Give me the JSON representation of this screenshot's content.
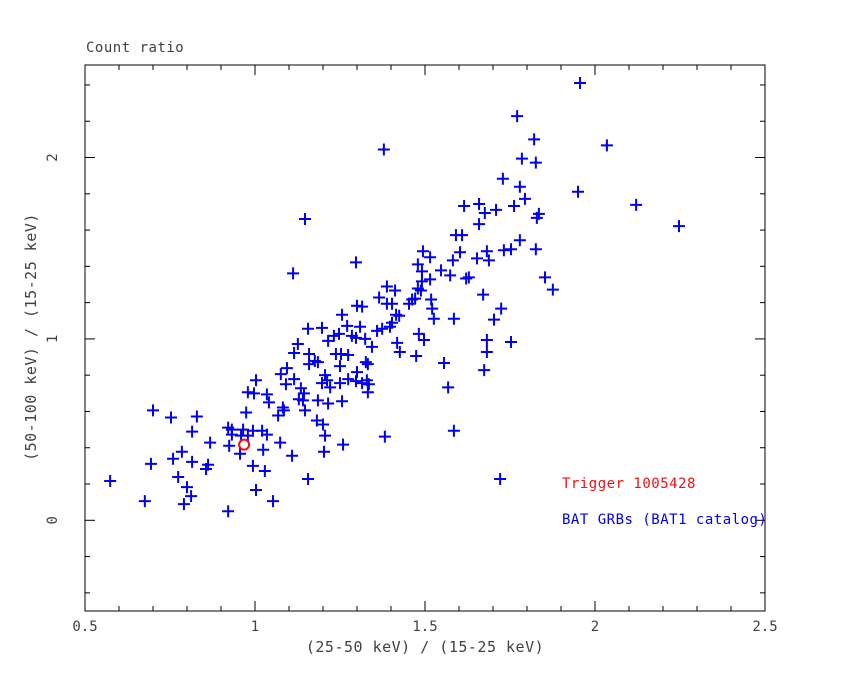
{
  "title": "Count ratio",
  "legend": {
    "trigger_label": "Trigger 1005428",
    "catalog_label": "BAT GRBs (BAT1 catalog)"
  },
  "colors": {
    "marker_blue": "#0000ee",
    "trigger_red": "#ee1111",
    "axis": "#000000",
    "text": "#404040",
    "background": "#ffffff"
  },
  "chart_data": {
    "type": "scatter",
    "title": "Count ratio",
    "xlabel": "(25-50 keV) / (15-25 keV)",
    "ylabel": "(50-100 keV) / (15-25 keV)",
    "xlim": [
      0.5,
      2.5
    ],
    "ylim": [
      -0.5,
      2.51
    ],
    "x_major_ticks": [
      0.5,
      1,
      1.5,
      2,
      2.5
    ],
    "x_tick_labels": [
      "0.5",
      "1",
      "1.5",
      "2",
      "2.5"
    ],
    "x_minor_step": 0.1,
    "y_major_ticks": [
      0,
      1,
      2
    ],
    "y_tick_labels": [
      "0",
      "1",
      "2"
    ],
    "y_minor_step": 0.2,
    "grid": false,
    "legend_position": "lower-right",
    "series": [
      {
        "name": "BAT GRBs (BAT1 catalog)",
        "marker": "plus",
        "color": "#0000ee",
        "points": [
          [
            1.147,
            1.661
          ],
          [
            1.771,
            2.228
          ],
          [
            1.821,
            2.1
          ],
          [
            1.785,
            1.994
          ],
          [
            1.826,
            1.972
          ],
          [
            1.379,
            2.044
          ],
          [
            1.729,
            1.883
          ],
          [
            1.779,
            1.839
          ],
          [
            1.794,
            1.772
          ],
          [
            1.762,
            1.733
          ],
          [
            1.615,
            1.733
          ],
          [
            1.659,
            1.744
          ],
          [
            1.676,
            1.694
          ],
          [
            1.709,
            1.711
          ],
          [
            1.835,
            1.689
          ],
          [
            1.829,
            1.667
          ],
          [
            1.659,
            1.633
          ],
          [
            1.591,
            1.572
          ],
          [
            1.609,
            1.572
          ],
          [
            1.779,
            1.544
          ],
          [
            1.956,
            2.411
          ],
          [
            2.035,
            2.067
          ],
          [
            1.95,
            1.811
          ],
          [
            2.121,
            1.739
          ],
          [
            2.247,
            1.622
          ],
          [
            1.112,
            1.361
          ],
          [
            1.156,
            1.056
          ],
          [
            1.126,
            0.972
          ],
          [
            1.115,
            0.922
          ],
          [
            1.159,
            0.917
          ],
          [
            1.159,
            0.861
          ],
          [
            1.076,
            0.806
          ],
          [
            1.094,
            0.839
          ],
          [
            1.091,
            0.75
          ],
          [
            1.115,
            0.778
          ],
          [
            1.135,
            0.728
          ],
          [
            1.144,
            0.7
          ],
          [
            1.129,
            0.667
          ],
          [
            1.141,
            0.661
          ],
          [
            1.003,
            0.772
          ],
          [
            0.979,
            0.706
          ],
          [
            0.997,
            0.7
          ],
          [
            1.035,
            0.694
          ],
          [
            1.041,
            0.65
          ],
          [
            1.082,
            0.622
          ],
          [
            1.068,
            0.578
          ],
          [
            1.085,
            0.606
          ],
          [
            1.147,
            0.606
          ],
          [
            0.7,
            0.606
          ],
          [
            0.753,
            0.567
          ],
          [
            0.829,
            0.572
          ],
          [
            0.974,
            0.594
          ],
          [
            0.921,
            0.511
          ],
          [
            0.932,
            0.5
          ],
          [
            0.815,
            0.489
          ],
          [
            0.965,
            0.5
          ],
          [
            0.994,
            0.494
          ],
          [
            1.021,
            0.494
          ],
          [
            1.494,
            1.483
          ],
          [
            1.603,
            1.478
          ],
          [
            1.653,
            1.444
          ],
          [
            1.682,
            1.483
          ],
          [
            1.688,
            1.433
          ],
          [
            1.732,
            1.489
          ],
          [
            1.753,
            1.494
          ],
          [
            1.826,
            1.494
          ],
          [
            1.297,
            1.422
          ],
          [
            1.479,
            1.411
          ],
          [
            1.515,
            1.45
          ],
          [
            1.582,
            1.433
          ],
          [
            1.547,
            1.378
          ],
          [
            1.491,
            1.372
          ],
          [
            1.574,
            1.35
          ],
          [
            1.621,
            1.333
          ],
          [
            1.629,
            1.339
          ],
          [
            1.853,
            1.339
          ],
          [
            1.515,
            1.328
          ],
          [
            1.491,
            1.317
          ],
          [
            1.388,
            1.289
          ],
          [
            1.412,
            1.267
          ],
          [
            1.479,
            1.278
          ],
          [
            1.488,
            1.267
          ],
          [
            1.671,
            1.244
          ],
          [
            1.365,
            1.228
          ],
          [
            1.462,
            1.217
          ],
          [
            1.471,
            1.222
          ],
          [
            1.518,
            1.217
          ],
          [
            1.3,
            1.183
          ],
          [
            1.315,
            1.178
          ],
          [
            1.388,
            1.194
          ],
          [
            1.403,
            1.194
          ],
          [
            1.453,
            1.194
          ],
          [
            1.521,
            1.167
          ],
          [
            1.724,
            1.167
          ],
          [
            1.256,
            1.133
          ],
          [
            1.415,
            1.133
          ],
          [
            1.424,
            1.128
          ],
          [
            1.526,
            1.111
          ],
          [
            1.585,
            1.111
          ],
          [
            1.703,
            1.106
          ],
          [
            1.197,
            1.061
          ],
          [
            1.271,
            1.072
          ],
          [
            1.309,
            1.067
          ],
          [
            1.359,
            1.044
          ],
          [
            1.374,
            1.056
          ],
          [
            1.397,
            1.067
          ],
          [
            1.403,
            1.089
          ],
          [
            1.482,
            1.028
          ],
          [
            1.232,
            1.017
          ],
          [
            1.247,
            1.028
          ],
          [
            1.285,
            1.017
          ],
          [
            1.297,
            1.006
          ],
          [
            1.324,
            1.0
          ],
          [
            1.497,
            0.994
          ],
          [
            1.215,
            0.989
          ],
          [
            1.418,
            0.978
          ],
          [
            1.344,
            0.956
          ],
          [
            1.426,
            0.928
          ],
          [
            1.682,
            0.994
          ],
          [
            1.682,
            0.928
          ],
          [
            1.753,
            0.983
          ],
          [
            1.238,
            0.917
          ],
          [
            1.253,
            0.917
          ],
          [
            1.274,
            0.911
          ],
          [
            1.474,
            0.906
          ],
          [
            1.25,
            0.85
          ],
          [
            1.326,
            0.872
          ],
          [
            1.332,
            0.861
          ],
          [
            1.556,
            0.867
          ],
          [
            1.185,
            0.872
          ],
          [
            1.176,
            0.878
          ],
          [
            1.206,
            0.8
          ],
          [
            1.212,
            0.772
          ],
          [
            1.197,
            0.756
          ],
          [
            1.25,
            0.756
          ],
          [
            1.274,
            0.778
          ],
          [
            1.3,
            0.817
          ],
          [
            1.297,
            0.767
          ],
          [
            1.315,
            0.756
          ],
          [
            1.329,
            0.772
          ],
          [
            1.335,
            0.75
          ],
          [
            1.332,
            0.706
          ],
          [
            1.568,
            0.733
          ],
          [
            1.674,
            0.828
          ],
          [
            1.221,
            0.733
          ],
          [
            1.185,
            0.661
          ],
          [
            1.215,
            0.644
          ],
          [
            1.256,
            0.656
          ],
          [
            1.182,
            0.55
          ],
          [
            1.2,
            0.528
          ],
          [
            1.585,
            0.494
          ],
          [
            1.876,
            1.272
          ],
          [
            0.868,
            0.428
          ],
          [
            0.924,
            0.411
          ],
          [
            0.932,
            0.472
          ],
          [
            0.959,
            0.467
          ],
          [
            0.979,
            0.467
          ],
          [
            0.956,
            0.367
          ],
          [
            1.035,
            0.472
          ],
          [
            1.024,
            0.389
          ],
          [
            1.074,
            0.428
          ],
          [
            1.109,
            0.356
          ],
          [
            0.694,
            0.311
          ],
          [
            0.759,
            0.339
          ],
          [
            0.785,
            0.378
          ],
          [
            0.815,
            0.322
          ],
          [
            0.774,
            0.239
          ],
          [
            0.8,
            0.183
          ],
          [
            0.812,
            0.133
          ],
          [
            0.791,
            0.089
          ],
          [
            0.862,
            0.306
          ],
          [
            0.856,
            0.283
          ],
          [
            0.994,
            0.3
          ],
          [
            1.029,
            0.272
          ],
          [
            1.003,
            0.167
          ],
          [
            1.053,
            0.106
          ],
          [
            0.921,
            0.05
          ],
          [
            0.574,
            0.217
          ],
          [
            0.676,
            0.106
          ],
          [
            1.156,
            0.228
          ],
          [
            1.206,
            0.467
          ],
          [
            1.259,
            0.417
          ],
          [
            1.203,
            0.378
          ],
          [
            1.382,
            0.461
          ],
          [
            1.721,
            0.228
          ]
        ]
      },
      {
        "name": "Trigger 1005428",
        "marker": "open-circle",
        "color": "#ee1111",
        "points": [
          [
            0.968,
            0.417
          ]
        ]
      }
    ]
  }
}
